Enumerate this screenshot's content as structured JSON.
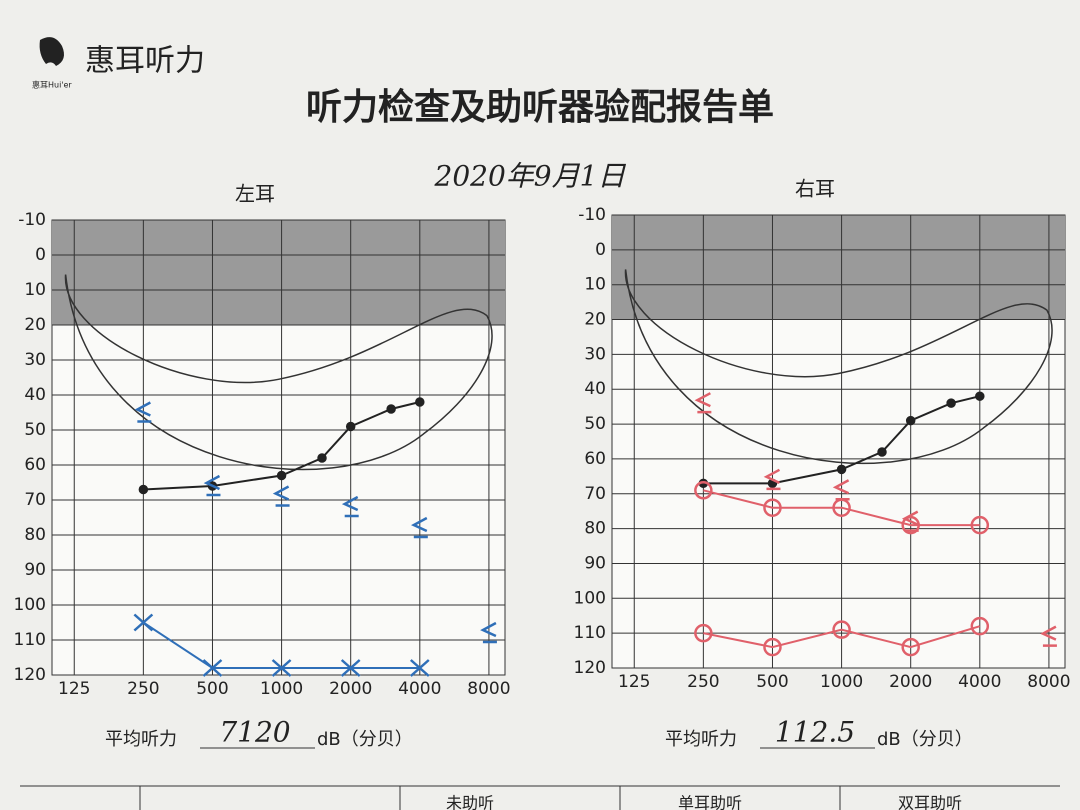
{
  "header": {
    "brand": "惠耳听力",
    "brand_sub": "惠耳Hui'er",
    "title": "听力检查及助听器验配报告单",
    "date": "2020年9月1日"
  },
  "chart_data": [
    {
      "type": "line",
      "title": "左耳",
      "xscale": "log",
      "invert_y": true,
      "grid": true,
      "band": [
        -10,
        20
      ],
      "xlim": [
        100,
        9400
      ],
      "xticks": [
        125,
        250,
        500,
        1000,
        2000,
        4000,
        8000
      ],
      "ylim": [
        -10,
        120
      ],
      "yticks": [
        -10,
        0,
        10,
        20,
        30,
        40,
        50,
        60,
        70,
        80,
        90,
        100,
        110,
        120
      ],
      "series": [
        {
          "color": "#222222",
          "marker": "dot",
          "line": true,
          "x": [
            250,
            500,
            1000,
            1500,
            2000,
            3000,
            4000
          ],
          "values": [
            67,
            66,
            63,
            58,
            49,
            44,
            42
          ]
        },
        {
          "color": "#2f6fb8",
          "marker": "bracket",
          "line": false,
          "x": [
            250,
            500,
            1000,
            2000,
            4000,
            8000
          ],
          "values": [
            45,
            66,
            69,
            72,
            78,
            108
          ]
        },
        {
          "color": "#2f6fb8",
          "marker": "x",
          "line": true,
          "x": [
            250,
            500,
            1000,
            2000,
            4000
          ],
          "values": [
            105,
            118,
            118,
            118,
            118
          ]
        }
      ]
    },
    {
      "type": "line",
      "title": "右耳",
      "xscale": "log",
      "invert_y": true,
      "grid": true,
      "band": [
        -10,
        20
      ],
      "xlim": [
        100,
        9400
      ],
      "xticks": [
        125,
        250,
        500,
        1000,
        2000,
        4000,
        8000
      ],
      "ylim": [
        -10,
        120
      ],
      "yticks": [
        -10,
        0,
        10,
        20,
        30,
        40,
        50,
        60,
        70,
        80,
        90,
        100,
        110,
        120
      ],
      "series": [
        {
          "color": "#222222",
          "marker": "dot",
          "line": true,
          "x": [
            250,
            500,
            1000,
            1500,
            2000,
            3000,
            4000
          ],
          "values": [
            67,
            67,
            63,
            58,
            49,
            44,
            42
          ]
        },
        {
          "color": "#e0606a",
          "marker": "bracket",
          "line": false,
          "x": [
            250,
            500,
            1000,
            2000,
            8000
          ],
          "values": [
            44,
            66,
            69,
            78,
            111
          ]
        },
        {
          "color": "#e0606a",
          "marker": "circle",
          "line": true,
          "x": [
            250,
            500,
            1000,
            2000,
            4000
          ],
          "values": [
            69,
            74,
            74,
            79,
            79
          ]
        },
        {
          "color": "#e0606a",
          "marker": "circle",
          "line": true,
          "x": [
            250,
            500,
            1000,
            2000,
            4000
          ],
          "values": [
            110,
            114,
            109,
            114,
            108
          ]
        }
      ]
    }
  ],
  "averages": [
    {
      "label": "平均听力",
      "value": "7120",
      "unit": "dB（分贝）"
    },
    {
      "label": "平均听力",
      "value": "112.5",
      "unit": "dB（分贝）"
    }
  ],
  "table": {
    "columns": [
      "未助听",
      "单耳助听",
      "双耳助听"
    ]
  }
}
